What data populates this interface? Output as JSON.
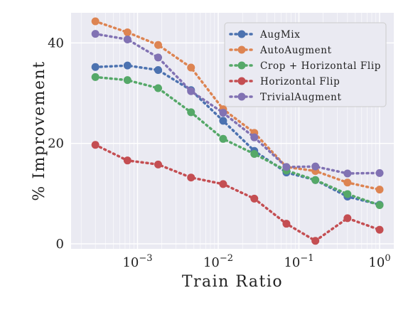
{
  "chart_data": {
    "type": "line",
    "xscale": "log",
    "x": [
      0.0003,
      0.00075,
      0.0018,
      0.0046,
      0.0115,
      0.028,
      0.07,
      0.16,
      0.4,
      1.0
    ],
    "xlim": [
      0.00015,
      1.5
    ],
    "ylim": [
      -1,
      46
    ],
    "xlabel": "Train Ratio",
    "ylabel": "% Improvement",
    "yticks": [
      0,
      20,
      40
    ],
    "xticks": [
      {
        "value": 0.001,
        "base": "10",
        "exp": "−3"
      },
      {
        "value": 0.01,
        "base": "10",
        "exp": "−2"
      },
      {
        "value": 0.1,
        "base": "10",
        "exp": "−1"
      },
      {
        "value": 1,
        "base": "10",
        "exp": "0"
      }
    ],
    "grid": true,
    "legend_position": "top-right",
    "series": [
      {
        "name": "AugMix",
        "color": "#4c72b0",
        "values": [
          35.2,
          35.5,
          34.6,
          30.6,
          24.5,
          18.5,
          14.2,
          12.7,
          9.4,
          7.8
        ]
      },
      {
        "name": "AutoAugment",
        "color": "#dd8452",
        "values": [
          44.3,
          42.1,
          39.6,
          35.1,
          26.8,
          22.1,
          15.3,
          14.5,
          12.2,
          10.8
        ]
      },
      {
        "name": "Crop + Horizontal Flip",
        "color": "#55a868",
        "values": [
          33.2,
          32.6,
          31.0,
          26.2,
          20.9,
          17.9,
          14.6,
          12.7,
          9.9,
          7.7
        ]
      },
      {
        "name": "Horizontal Flip",
        "color": "#c44e52",
        "values": [
          19.7,
          16.6,
          15.8,
          13.2,
          11.9,
          9.0,
          4.0,
          0.6,
          5.1,
          2.8
        ]
      },
      {
        "name": "TrivialAugment",
        "color": "#8172b3",
        "values": [
          41.8,
          40.7,
          37.1,
          30.4,
          26.1,
          21.2,
          15.3,
          15.4,
          14.0,
          14.1
        ]
      }
    ]
  }
}
